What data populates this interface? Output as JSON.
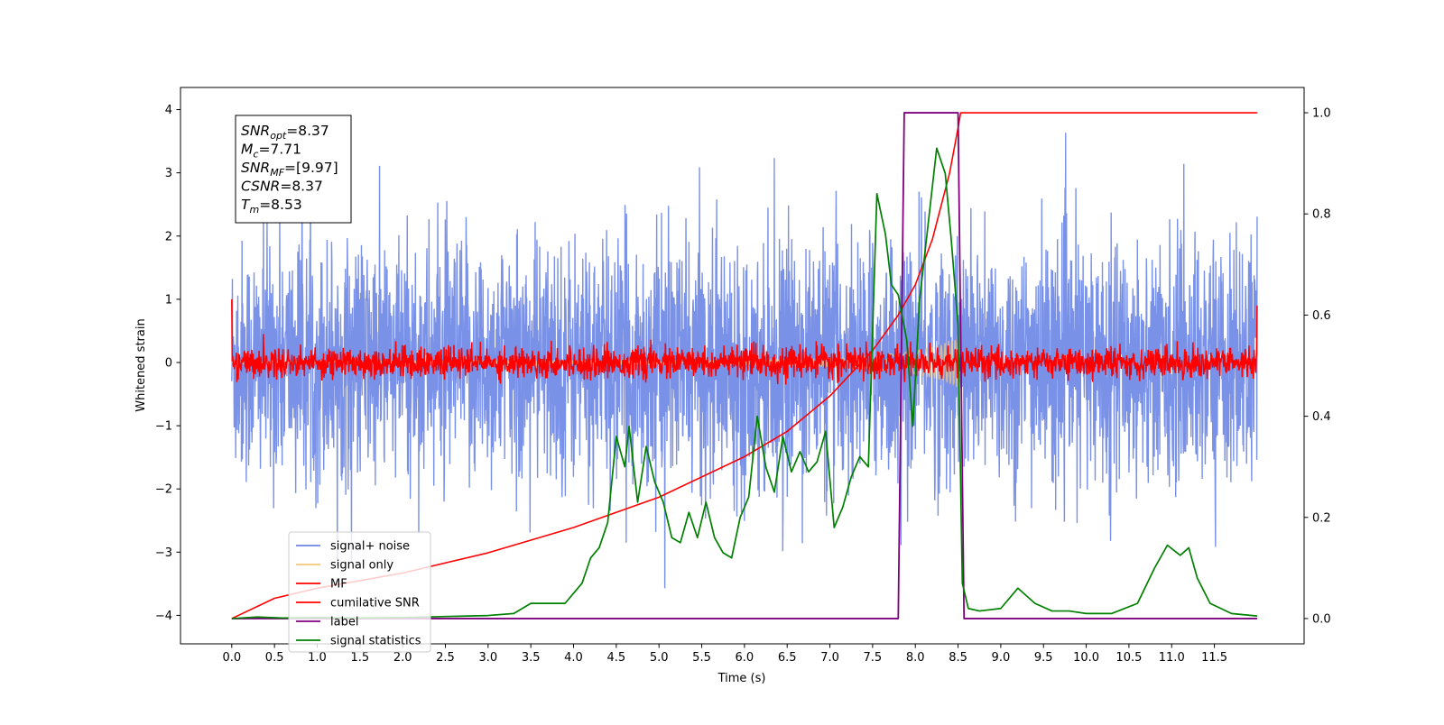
{
  "chart_data": {
    "type": "line",
    "title": "",
    "xlabel": "Time (s)",
    "ylabel": "Whitened strain",
    "y2label": "",
    "xlim": [
      -0.6,
      12.55
    ],
    "ylim": [
      -4.45,
      4.35
    ],
    "y2lim": [
      -0.05,
      1.05
    ],
    "grid": false,
    "legend_position": "lower-left",
    "x_ticks": [
      "0.0",
      "0.5",
      "1.0",
      "1.5",
      "2.0",
      "2.5",
      "3.0",
      "3.5",
      "4.0",
      "4.5",
      "5.0",
      "5.5",
      "6.0",
      "6.5",
      "7.0",
      "7.5",
      "8.0",
      "8.5",
      "9.0",
      "9.5",
      "10.0",
      "10.5",
      "11.0",
      "11.5"
    ],
    "y_ticks": [
      "−4",
      "−3",
      "−2",
      "−1",
      "0",
      "1",
      "2",
      "3",
      "4"
    ],
    "y2_ticks": [
      "0.0",
      "0.2",
      "0.4",
      "0.6",
      "0.8",
      "1.0"
    ],
    "annotation": [
      {
        "sym": "SNR",
        "sub": "opt",
        "val": "=8.37"
      },
      {
        "sym": "M",
        "sub": "c",
        "val": "=7.71"
      },
      {
        "sym": "SNR",
        "sub": "MF",
        "val": "=[9.97]"
      },
      {
        "sym": "CSNR",
        "sub": "",
        "val": "=8.37"
      },
      {
        "sym": "T",
        "sub": "m",
        "val": "=8.53"
      }
    ],
    "series": [
      {
        "name": "signal+ noise",
        "color": "#6b85e5",
        "axis": "left",
        "description_values": {
          "x_range": [
            0.0,
            12.0
          ],
          "mean": 0.0,
          "std": 0.95,
          "min": -4.15,
          "max": 3.95
        }
      },
      {
        "name": "signal only",
        "color": "#f5c77a",
        "axis": "left",
        "envelope_x": [
          0.0,
          6.0,
          7.0,
          7.5,
          8.0,
          8.3,
          8.5,
          8.53,
          12.0
        ],
        "envelope_y": [
          0.02,
          0.04,
          0.07,
          0.1,
          0.18,
          0.28,
          0.42,
          0.0,
          0.0
        ]
      },
      {
        "name": "MF",
        "color": "#ff0000",
        "axis": "left",
        "description_values": {
          "x_range": [
            0.0,
            12.0
          ],
          "mean": 0.0,
          "std": 0.12,
          "edge_values": [
            1.0,
            0.9
          ]
        }
      },
      {
        "name": "cumilative SNR",
        "color": "#ff0000",
        "axis": "right",
        "x": [
          0.0,
          0.5,
          1.0,
          2.0,
          3.0,
          4.0,
          5.0,
          6.0,
          6.5,
          7.0,
          7.5,
          7.8,
          8.0,
          8.2,
          8.4,
          8.5,
          8.53,
          12.0
        ],
        "y": [
          0.0,
          0.04,
          0.06,
          0.09,
          0.13,
          0.18,
          0.24,
          0.32,
          0.37,
          0.44,
          0.53,
          0.6,
          0.66,
          0.75,
          0.88,
          0.97,
          1.0,
          1.0
        ]
      },
      {
        "name": "label",
        "color": "#800080",
        "axis": "right",
        "x": [
          0.0,
          7.8,
          7.87,
          8.5,
          8.57,
          12.0
        ],
        "y": [
          0.0,
          0.0,
          1.0,
          1.0,
          0.0,
          0.0
        ]
      },
      {
        "name": "signal statistics",
        "color": "#008000",
        "axis": "right",
        "x": [
          0.0,
          0.3,
          0.6,
          1.0,
          1.5,
          2.0,
          2.5,
          3.0,
          3.3,
          3.5,
          3.7,
          3.9,
          4.1,
          4.2,
          4.3,
          4.4,
          4.5,
          4.6,
          4.65,
          4.75,
          4.85,
          4.95,
          5.05,
          5.15,
          5.25,
          5.35,
          5.45,
          5.55,
          5.65,
          5.75,
          5.85,
          5.95,
          6.05,
          6.15,
          6.25,
          6.35,
          6.45,
          6.55,
          6.65,
          6.75,
          6.85,
          6.95,
          7.05,
          7.15,
          7.25,
          7.35,
          7.45,
          7.55,
          7.65,
          7.72,
          7.8,
          7.9,
          7.97,
          8.05,
          8.15,
          8.25,
          8.35,
          8.42,
          8.5,
          8.55,
          8.62,
          8.75,
          9.0,
          9.2,
          9.4,
          9.6,
          9.8,
          10.0,
          10.3,
          10.6,
          10.8,
          10.95,
          11.1,
          11.2,
          11.3,
          11.45,
          11.7,
          12.0
        ],
        "y": [
          0.0,
          0.003,
          0.001,
          0.002,
          0.001,
          0.002,
          0.004,
          0.006,
          0.01,
          0.03,
          0.03,
          0.03,
          0.07,
          0.12,
          0.14,
          0.19,
          0.36,
          0.3,
          0.38,
          0.23,
          0.34,
          0.27,
          0.23,
          0.16,
          0.15,
          0.21,
          0.16,
          0.23,
          0.16,
          0.13,
          0.12,
          0.2,
          0.24,
          0.4,
          0.3,
          0.25,
          0.36,
          0.29,
          0.33,
          0.29,
          0.31,
          0.37,
          0.18,
          0.22,
          0.28,
          0.32,
          0.3,
          0.84,
          0.76,
          0.66,
          0.64,
          0.55,
          0.38,
          0.63,
          0.78,
          0.93,
          0.88,
          0.75,
          0.58,
          0.07,
          0.02,
          0.015,
          0.02,
          0.06,
          0.03,
          0.015,
          0.015,
          0.01,
          0.01,
          0.03,
          0.1,
          0.145,
          0.125,
          0.14,
          0.08,
          0.03,
          0.01,
          0.005
        ]
      }
    ]
  }
}
